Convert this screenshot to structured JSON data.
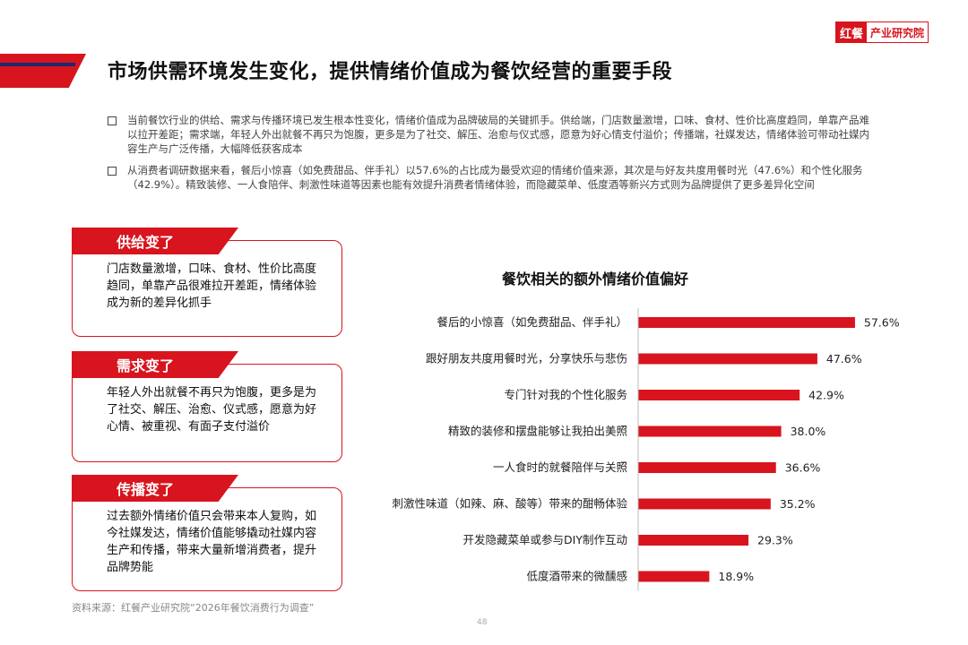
{
  "brand": {
    "logo": "红餐",
    "name": "产业研究院"
  },
  "page_title": "市场供需环境发生变化，提供情绪价值成为餐饮经营的重要手段",
  "bullets": [
    "当前餐饮行业的供给、需求与传播环境已发生根本性变化，情绪价值成为品牌破局的关键抓手。供给端，门店数量激增，口味、食材、性价比高度趋同，单靠产品难以拉开差距；需求端，年轻人外出就餐不再只为饱腹，更多是为了社交、解压、治愈与仪式感，愿意为好心情支付溢价；传播端，社媒发达，情绪体验可带动社媒内容生产与广泛传播，大幅降低获客成本",
    "从消费者调研数据来看，餐后小惊喜（如免费甜品、伴手礼）以57.6%的占比成为最受欢迎的情绪价值来源，其次是与好友共度用餐时光（47.6%）和个性化服务（42.9%）。精致装修、一人食陪伴、刺激性味道等因素也能有效提升消费者情绪体验，而隐藏菜单、低度酒等新兴方式则为品牌提供了更多差异化空间"
  ],
  "cards": [
    {
      "title": "供给变了",
      "text": "门店数量激增，口味、食材、性价比高度趋同，单靠产品很难拉开差距，情绪体验成为新的差异化抓手"
    },
    {
      "title": "需求变了",
      "text": "年轻人外出就餐不再只为饱腹，更多是为了社交、解压、治愈、仪式感，愿意为好心情、被重视、有面子支付溢价"
    },
    {
      "title": "传播变了",
      "text": "过去额外情绪价值只会带来本人复购，如今社媒发达，情绪价值能够撬动社媒内容生产和传播，带来大量新增消费者，提升品牌势能"
    }
  ],
  "chart_data": {
    "type": "bar",
    "orientation": "horizontal",
    "title": "餐饮相关的额外情绪价值偏好",
    "categories": [
      "餐后的小惊喜（如免费甜品、伴手礼）",
      "跟好朋友共度用餐时光，分享快乐与悲伤",
      "专门针对我的个性化服务",
      "精致的装修和摆盘能够让我拍出美照",
      "一人食时的就餐陪伴与关照",
      "刺激性味道（如辣、麻、酸等）带来的酣畅体验",
      "开发隐藏菜单或参与DIY制作互动",
      "低度酒带来的微醺感"
    ],
    "values": [
      57.6,
      47.6,
      42.9,
      38.0,
      36.6,
      35.2,
      29.3,
      18.9
    ],
    "value_labels": [
      "57.6%",
      "47.6%",
      "42.9%",
      "38.0%",
      "36.6%",
      "35.2%",
      "29.3%",
      "18.9%"
    ],
    "xlim": [
      0,
      60
    ],
    "grid": false,
    "bar_color": "#d8141e"
  },
  "source": "资料来源：红餐产业研究院“2026年餐饮消费行为调查”",
  "page_number": "48"
}
